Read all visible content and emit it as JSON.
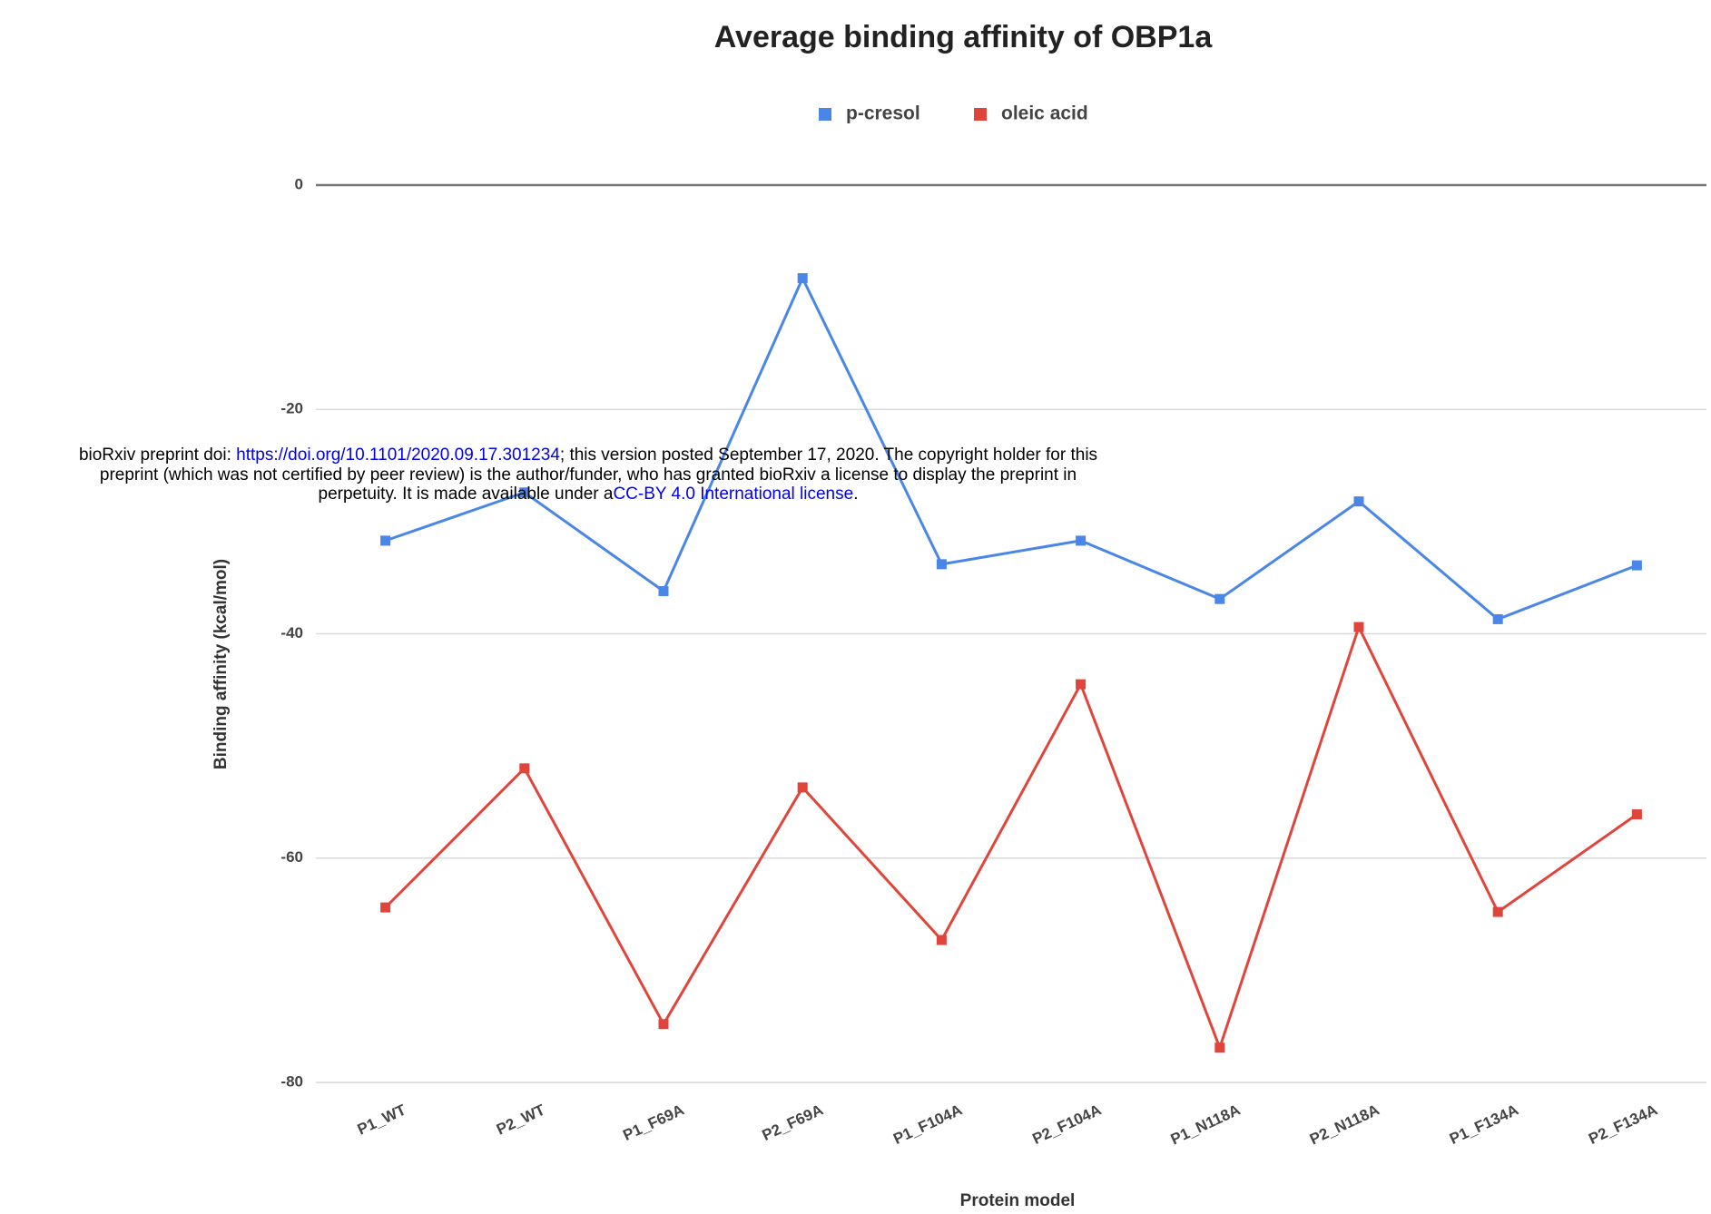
{
  "chart_data": {
    "type": "line",
    "title": "Average binding affinity of OBP1a",
    "x_label": "Protein model",
    "y_label": "Binding affinity (kcal/mol)",
    "categories": [
      "P1_WT",
      "P2_WT",
      "P1_F69A",
      "P2_F69A",
      "P1_F104A",
      "P2_F104A",
      "P1_N118A",
      "P2_N118A",
      "P1_F134A",
      "P2_F134A"
    ],
    "series": [
      {
        "name": "p-cresol",
        "color": "#4a86e8",
        "values": [
          -31.7,
          -27.4,
          -36.2,
          -8.3,
          -33.8,
          -31.7,
          -36.9,
          -28.2,
          -38.7,
          -33.9
        ]
      },
      {
        "name": "oleic acid",
        "color": "#e0453c",
        "values": [
          -64.4,
          -52.0,
          -74.8,
          -53.7,
          -67.3,
          -44.5,
          -76.9,
          -39.4,
          -64.8,
          -56.1
        ]
      }
    ],
    "ylim": [
      -80,
      0
    ],
    "yticks": [
      0,
      -20,
      -40,
      -60,
      -80
    ],
    "grid": true,
    "legend": "top"
  },
  "watermark": {
    "line1_a": "bioRxiv preprint doi: ",
    "doi": "https://doi.org/10.1101/2020.09.17.301234",
    "line1_b": "; this version posted September 17, 2020. The copyright holder for this",
    "line2": "preprint (which was not certified by peer review) is the author/funder, who has granted bioRxiv a license to display the preprint in",
    "line3_a": "perpetuity. It is made available under a",
    "license": "CC-BY 4.0 International license",
    "line3_b": "."
  }
}
